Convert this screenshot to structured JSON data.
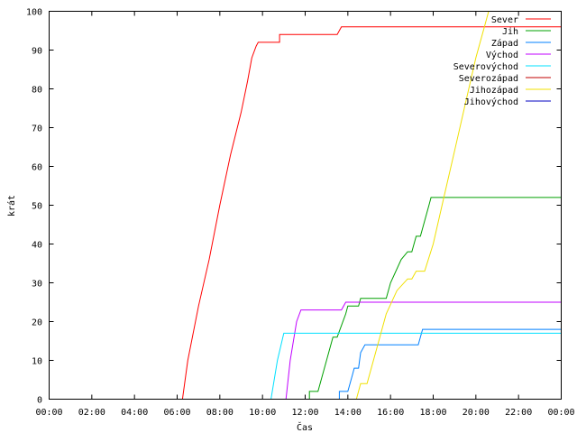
{
  "chart_data": {
    "type": "line",
    "title": "",
    "xlabel": "Čas",
    "ylabel": "krát",
    "xlim": [
      0,
      24
    ],
    "ylim": [
      0,
      100
    ],
    "x_ticks": [
      {
        "value": 0,
        "label": "00:00"
      },
      {
        "value": 2,
        "label": "02:00"
      },
      {
        "value": 4,
        "label": "04:00"
      },
      {
        "value": 6,
        "label": "06:00"
      },
      {
        "value": 8,
        "label": "08:00"
      },
      {
        "value": 10,
        "label": "10:00"
      },
      {
        "value": 12,
        "label": "12:00"
      },
      {
        "value": 14,
        "label": "14:00"
      },
      {
        "value": 16,
        "label": "16:00"
      },
      {
        "value": 18,
        "label": "18:00"
      },
      {
        "value": 20,
        "label": "20:00"
      },
      {
        "value": 22,
        "label": "22:00"
      },
      {
        "value": 24,
        "label": "00:00"
      }
    ],
    "y_ticks": [
      {
        "value": 0,
        "label": "0"
      },
      {
        "value": 10,
        "label": "10"
      },
      {
        "value": 20,
        "label": "20"
      },
      {
        "value": 30,
        "label": "30"
      },
      {
        "value": 40,
        "label": "40"
      },
      {
        "value": 50,
        "label": "50"
      },
      {
        "value": 60,
        "label": "60"
      },
      {
        "value": 70,
        "label": "70"
      },
      {
        "value": 80,
        "label": "80"
      },
      {
        "value": 90,
        "label": "90"
      },
      {
        "value": 100,
        "label": "100"
      }
    ],
    "grid": false,
    "legend_position": "top-right",
    "series": [
      {
        "name": "Sever",
        "color": "#ff0000",
        "points": [
          [
            0,
            0
          ],
          [
            6.25,
            0
          ],
          [
            6.5,
            10
          ],
          [
            7.0,
            24
          ],
          [
            7.5,
            36
          ],
          [
            8.0,
            50
          ],
          [
            8.5,
            63
          ],
          [
            9.0,
            74
          ],
          [
            9.3,
            82
          ],
          [
            9.5,
            88
          ],
          [
            9.7,
            91
          ],
          [
            9.8,
            92
          ],
          [
            10.8,
            92
          ],
          [
            10.8,
            94
          ],
          [
            13.5,
            94
          ],
          [
            13.7,
            96
          ],
          [
            24,
            96
          ]
        ]
      },
      {
        "name": "Jih",
        "color": "#00a000",
        "points": [
          [
            0,
            0
          ],
          [
            12.2,
            0
          ],
          [
            12.2,
            2
          ],
          [
            12.6,
            2
          ],
          [
            13.0,
            10
          ],
          [
            13.3,
            16
          ],
          [
            13.5,
            16
          ],
          [
            13.9,
            22
          ],
          [
            14.0,
            24
          ],
          [
            14.5,
            24
          ],
          [
            14.6,
            26
          ],
          [
            15.8,
            26
          ],
          [
            16.0,
            30
          ],
          [
            16.5,
            36
          ],
          [
            16.8,
            38
          ],
          [
            17.0,
            38
          ],
          [
            17.2,
            42
          ],
          [
            17.4,
            42
          ],
          [
            17.8,
            50
          ],
          [
            17.9,
            52
          ],
          [
            24,
            52
          ]
        ]
      },
      {
        "name": "Západ",
        "color": "#0080ff",
        "points": [
          [
            0,
            0
          ],
          [
            13.6,
            0
          ],
          [
            13.6,
            2
          ],
          [
            14.0,
            2
          ],
          [
            14.2,
            6
          ],
          [
            14.3,
            8
          ],
          [
            14.5,
            8
          ],
          [
            14.6,
            12
          ],
          [
            14.8,
            14
          ],
          [
            17.3,
            14
          ],
          [
            17.5,
            18
          ],
          [
            24,
            18
          ]
        ]
      },
      {
        "name": "Východ",
        "color": "#c000ff",
        "points": [
          [
            0,
            0
          ],
          [
            11.1,
            0
          ],
          [
            11.3,
            10
          ],
          [
            11.6,
            20
          ],
          [
            11.8,
            23
          ],
          [
            13.7,
            23
          ],
          [
            13.9,
            25
          ],
          [
            24,
            25
          ]
        ]
      },
      {
        "name": "Severovýchod",
        "color": "#00e0ff",
        "points": [
          [
            0,
            0
          ],
          [
            10.4,
            0
          ],
          [
            10.7,
            10
          ],
          [
            11.0,
            17
          ],
          [
            24,
            17
          ]
        ]
      },
      {
        "name": "Severozápad",
        "color": "#c00000",
        "points": []
      },
      {
        "name": "Jihozápad",
        "color": "#f0e000",
        "points": [
          [
            0,
            0
          ],
          [
            14.4,
            0
          ],
          [
            14.6,
            4
          ],
          [
            14.9,
            4
          ],
          [
            15.3,
            12
          ],
          [
            15.8,
            22
          ],
          [
            16.3,
            28
          ],
          [
            16.8,
            31
          ],
          [
            17.0,
            31
          ],
          [
            17.2,
            33
          ],
          [
            17.6,
            33
          ],
          [
            18.0,
            40
          ],
          [
            18.5,
            52
          ],
          [
            19.0,
            64
          ],
          [
            19.5,
            76
          ],
          [
            20.0,
            88
          ],
          [
            20.4,
            96
          ],
          [
            20.6,
            100
          ]
        ]
      },
      {
        "name": "Jihovýchod",
        "color": "#0000c0",
        "points": []
      }
    ]
  }
}
